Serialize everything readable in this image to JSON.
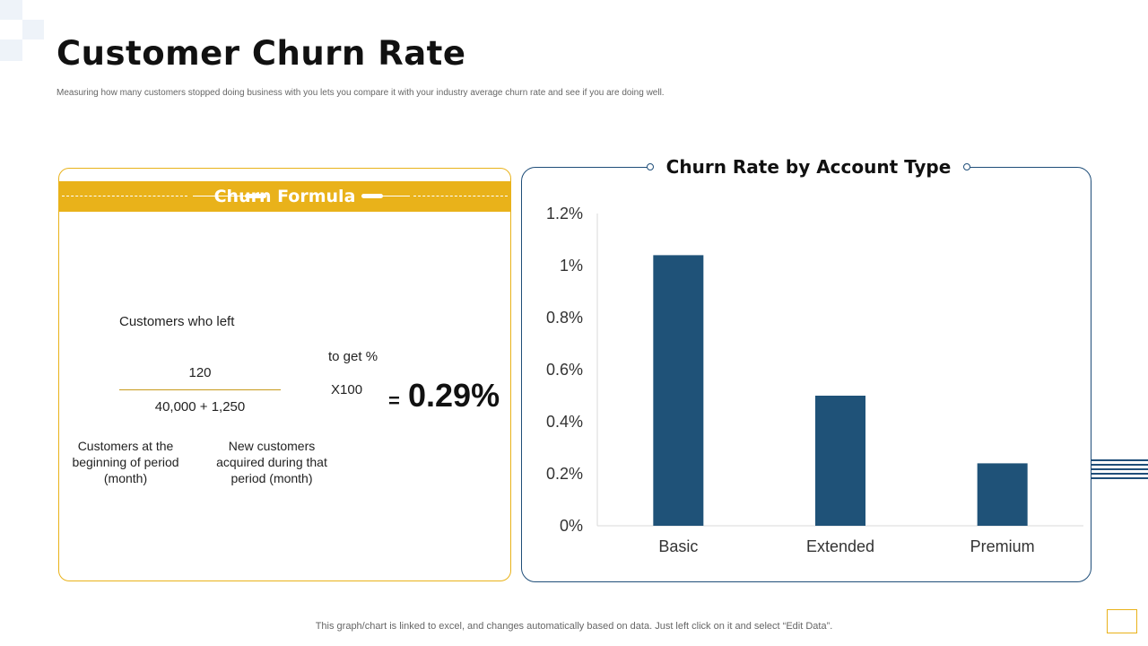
{
  "title": "Customer Churn Rate",
  "subtitle": "Measuring how many customers stopped doing business with you lets you compare it with your industry average churn rate and see if you are doing  well.",
  "formula": {
    "header": "Churn Formula",
    "numerator_label": "Customers who left",
    "numerator_value": "120",
    "denominator_value": "40,000 + 1,250",
    "to_get_label": "to get %",
    "multiplier": "X100",
    "equals": "=",
    "result": "0.29%",
    "denominator_label_left": "Customers at the beginning of period (month)",
    "denominator_label_right": "New customers acquired during that period (month)"
  },
  "chart_data": {
    "type": "bar",
    "title": "Churn Rate by Account Type",
    "categories": [
      "Basic",
      "Extended",
      "Premium"
    ],
    "values": [
      1.04,
      0.5,
      0.24
    ],
    "yticks": [
      "0%",
      "0.2%",
      "0.4%",
      "0.6%",
      "0.8%",
      "1%",
      "1.2%"
    ],
    "ylim": [
      0,
      1.2
    ],
    "xlabel": "",
    "ylabel": "",
    "grid": false,
    "bar_color": "#1f5278"
  },
  "footer": "This graph/chart is linked to excel,  and changes automatically based on data. Just left click on it and select “Edit Data”.",
  "colors": {
    "accent": "#e9b21a",
    "navy": "#1f4e79"
  }
}
